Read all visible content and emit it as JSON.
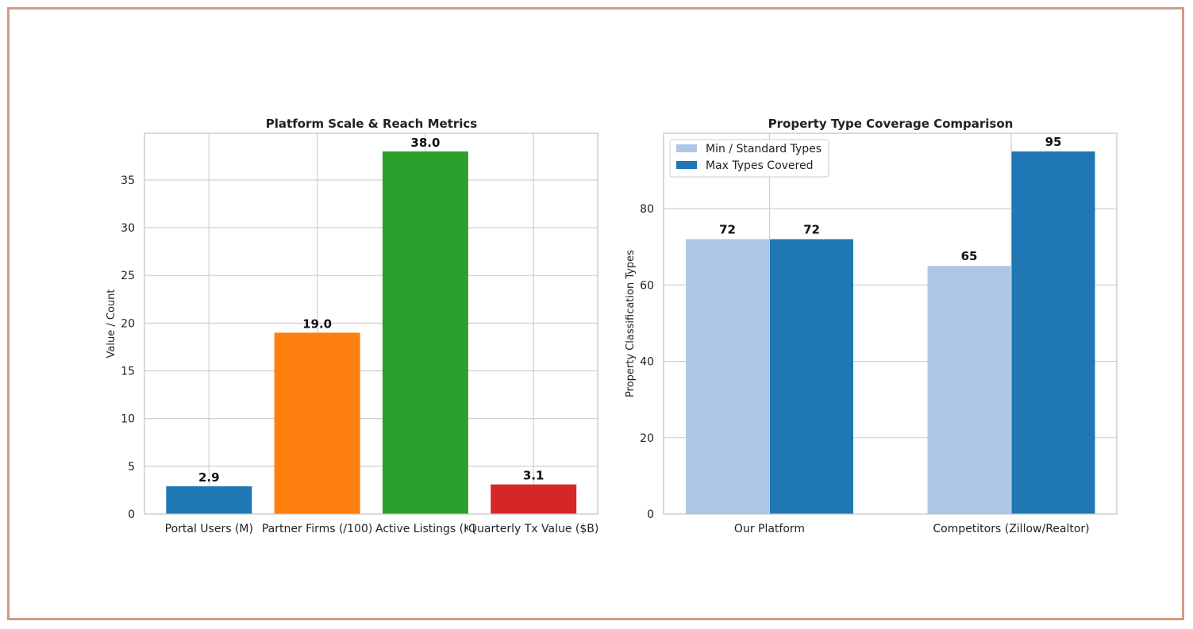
{
  "colors": {
    "frame": "#d39a84",
    "grid": "#cccccc",
    "axis": "#c0c0c0"
  },
  "chart_data": [
    {
      "type": "bar",
      "title": "Platform Scale & Reach Metrics",
      "xlabel": "",
      "ylabel": "Value / Count",
      "categories": [
        "Portal Users (M)",
        "Partner Firms (/100)",
        "Active Listings (K)",
        "Quarterly Tx Value ($B)"
      ],
      "values": [
        2.9,
        19.0,
        38.0,
        3.1
      ],
      "data_labels": [
        "2.9",
        "19.0",
        "38.0",
        "3.1"
      ],
      "bar_colors": [
        "#1f77b4",
        "#ff7f0e",
        "#2ca02c",
        "#d62728"
      ],
      "ylim": [
        0,
        39.9
      ],
      "yticks": [
        0,
        5,
        10,
        15,
        20,
        25,
        30,
        35
      ],
      "grid": true
    },
    {
      "type": "bar",
      "title": "Property Type Coverage Comparison",
      "xlabel": "",
      "ylabel": "Property Classification Types",
      "categories": [
        "Our Platform",
        "Competitors (Zillow/Realtor)"
      ],
      "series": [
        {
          "name": "Min / Standard Types",
          "values": [
            72,
            65
          ],
          "labels": [
            "72",
            "65"
          ],
          "color": "#aec7e8"
        },
        {
          "name": "Max Types Covered",
          "values": [
            72,
            95
          ],
          "labels": [
            "72",
            "95"
          ],
          "color": "#1f77b4"
        }
      ],
      "ylim": [
        0,
        99.75
      ],
      "yticks": [
        0,
        20,
        40,
        60,
        80
      ],
      "legend": "top-left",
      "grid": true
    }
  ]
}
